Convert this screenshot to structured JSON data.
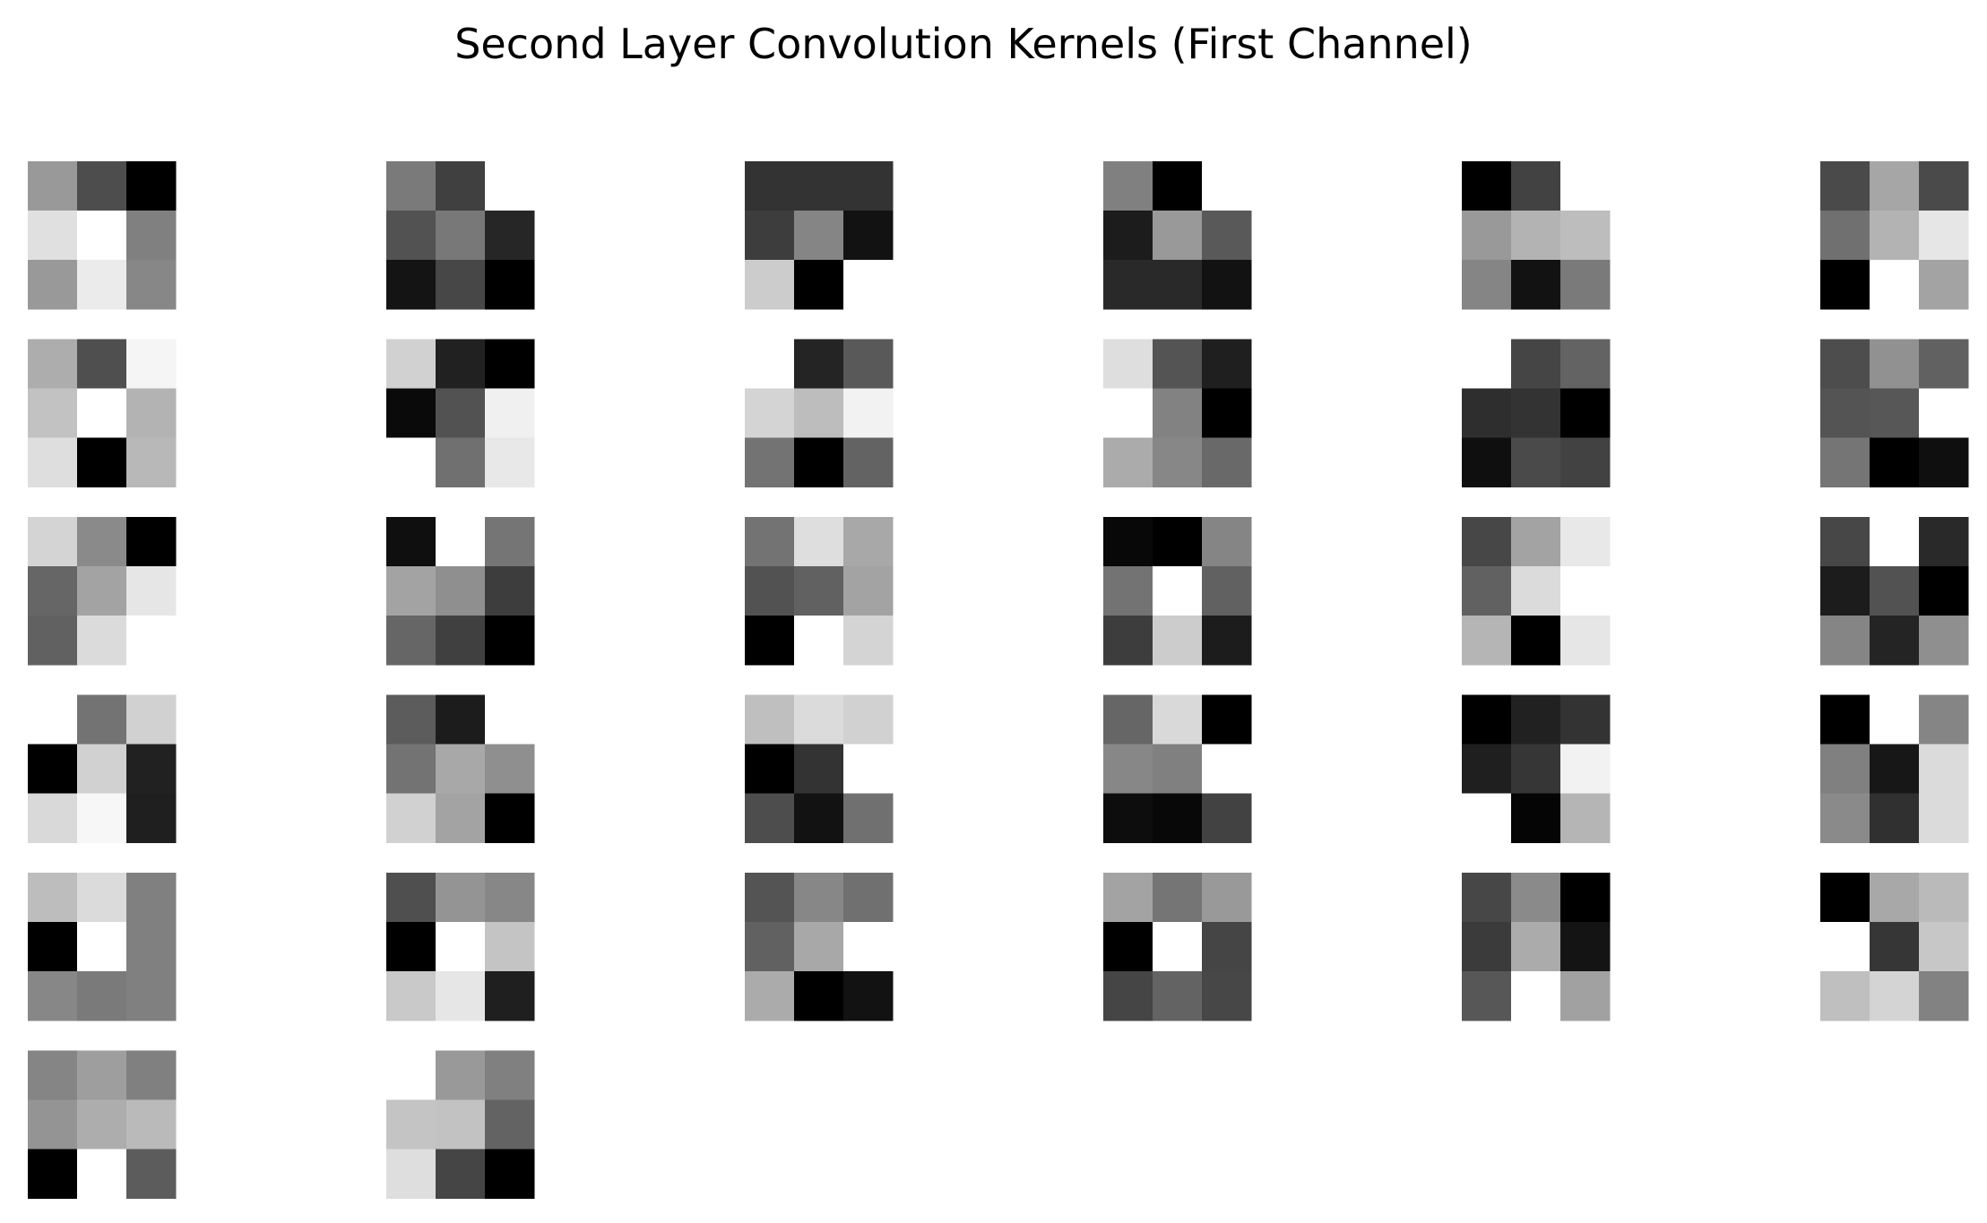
{
  "chart_data": {
    "type": "heatmap",
    "title": "Second Layer Convolution Kernels (First Channel)",
    "colormap": "gray",
    "axes": "off",
    "grid": false,
    "layout": {
      "rows": 6,
      "columns": 6
    },
    "kernel_size": [
      3,
      3
    ],
    "value_scale": "per-kernel normalized, 0 = black, 1 = white",
    "kernels": [
      [
        [
          0.6,
          0.3,
          0.0
        ],
        [
          0.88,
          1.0,
          0.5
        ],
        [
          0.6,
          0.92,
          0.53
        ]
      ],
      [
        [
          0.48,
          0.25,
          1.0
        ],
        [
          0.32,
          0.47,
          0.15
        ],
        [
          0.08,
          0.28,
          0.0
        ]
      ],
      [
        [
          0.2,
          0.2,
          0.2
        ],
        [
          0.24,
          0.52,
          0.07
        ],
        [
          0.8,
          0.0,
          1.0
        ]
      ],
      [
        [
          0.5,
          0.0,
          1.0
        ],
        [
          0.11,
          0.6,
          0.35
        ],
        [
          0.16,
          0.16,
          0.07
        ]
      ],
      [
        [
          0.0,
          0.26,
          1.0
        ],
        [
          0.6,
          0.7,
          0.74
        ],
        [
          0.52,
          0.07,
          0.48
        ]
      ],
      [
        [
          0.29,
          0.65,
          0.29
        ],
        [
          0.44,
          0.7,
          0.9
        ],
        [
          0.0,
          1.0,
          0.64
        ]
      ],
      [
        [
          0.68,
          0.31,
          0.96
        ],
        [
          0.76,
          1.0,
          0.7
        ],
        [
          0.87,
          0.0,
          0.72
        ]
      ],
      [
        [
          0.82,
          0.13,
          0.0
        ],
        [
          0.04,
          0.32,
          0.94
        ],
        [
          1.0,
          0.44,
          0.91
        ]
      ],
      [
        [
          1.0,
          0.14,
          0.35
        ],
        [
          0.83,
          0.74,
          0.95
        ],
        [
          0.45,
          0.0,
          0.39
        ]
      ],
      [
        [
          0.87,
          0.33,
          0.12
        ],
        [
          1.0,
          0.51,
          0.0
        ],
        [
          0.67,
          0.53,
          0.41
        ]
      ],
      [
        [
          1.0,
          0.27,
          0.39
        ],
        [
          0.18,
          0.2,
          0.0
        ],
        [
          0.06,
          0.29,
          0.26
        ]
      ],
      [
        [
          0.3,
          0.57,
          0.38
        ],
        [
          0.33,
          0.34,
          1.0
        ],
        [
          0.46,
          0.0,
          0.06
        ]
      ],
      [
        [
          0.83,
          0.54,
          0.0
        ],
        [
          0.4,
          0.64,
          0.9
        ],
        [
          0.38,
          0.86,
          1.0
        ]
      ],
      [
        [
          0.06,
          1.0,
          0.46
        ],
        [
          0.64,
          0.56,
          0.24
        ],
        [
          0.4,
          0.25,
          0.0
        ]
      ],
      [
        [
          0.45,
          0.87,
          0.66
        ],
        [
          0.32,
          0.38,
          0.64
        ],
        [
          0.0,
          1.0,
          0.83
        ]
      ],
      [
        [
          0.03,
          0.0,
          0.52
        ],
        [
          0.45,
          1.0,
          0.38
        ],
        [
          0.24,
          0.8,
          0.11
        ]
      ],
      [
        [
          0.28,
          0.64,
          0.91
        ],
        [
          0.38,
          0.86,
          1.0
        ],
        [
          0.71,
          0.0,
          0.9
        ]
      ],
      [
        [
          0.28,
          1.0,
          0.16
        ],
        [
          0.11,
          0.32,
          0.0
        ],
        [
          0.52,
          0.14,
          0.56
        ]
      ],
      [
        [
          1.0,
          0.45,
          0.82
        ],
        [
          0.0,
          0.82,
          0.13
        ],
        [
          0.85,
          0.97,
          0.12
        ]
      ],
      [
        [
          0.36,
          0.11,
          1.0
        ],
        [
          0.45,
          0.66,
          0.56
        ],
        [
          0.82,
          0.64,
          0.0
        ]
      ],
      [
        [
          0.75,
          0.86,
          0.82
        ],
        [
          0.0,
          0.2,
          1.0
        ],
        [
          0.3,
          0.07,
          0.44
        ]
      ],
      [
        [
          0.4,
          0.85,
          0.0
        ],
        [
          0.53,
          0.5,
          1.0
        ],
        [
          0.05,
          0.03,
          0.26
        ]
      ],
      [
        [
          0.0,
          0.13,
          0.2
        ],
        [
          0.12,
          0.21,
          0.95
        ],
        [
          1.0,
          0.02,
          0.71
        ]
      ],
      [
        [
          0.0,
          1.0,
          0.52
        ],
        [
          0.5,
          0.09,
          0.86
        ],
        [
          0.54,
          0.19,
          0.86
        ]
      ],
      [
        [
          0.74,
          0.86,
          0.5
        ],
        [
          0.0,
          1.0,
          0.5
        ],
        [
          0.53,
          0.48,
          0.5
        ]
      ],
      [
        [
          0.31,
          0.58,
          0.53
        ],
        [
          0.0,
          1.0,
          0.77
        ],
        [
          0.79,
          0.9,
          0.12
        ]
      ],
      [
        [
          0.33,
          0.53,
          0.44
        ],
        [
          0.38,
          0.66,
          1.0
        ],
        [
          0.67,
          0.0,
          0.07
        ]
      ],
      [
        [
          0.64,
          0.46,
          0.6
        ],
        [
          0.0,
          1.0,
          0.27
        ],
        [
          0.27,
          0.39,
          0.28
        ]
      ],
      [
        [
          0.28,
          0.54,
          0.0
        ],
        [
          0.23,
          0.67,
          0.08
        ],
        [
          0.34,
          1.0,
          0.63
        ]
      ],
      [
        [
          0.0,
          0.66,
          0.73
        ],
        [
          1.0,
          0.21,
          0.78
        ],
        [
          0.75,
          0.83,
          0.51
        ]
      ],
      [
        [
          0.52,
          0.62,
          0.5
        ],
        [
          0.58,
          0.68,
          0.73
        ],
        [
          0.0,
          1.0,
          0.36
        ]
      ],
      [
        [
          1.0,
          0.6,
          0.5
        ],
        [
          0.77,
          0.76,
          0.39
        ],
        [
          0.87,
          0.27,
          0.0
        ]
      ]
    ]
  }
}
